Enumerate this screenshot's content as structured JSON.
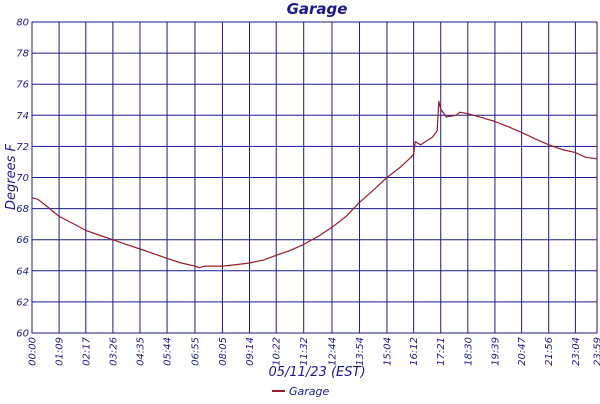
{
  "chart_data": {
    "type": "line",
    "title": "Garage",
    "xlabel": "05/11/23 (EST)",
    "ylabel": "Degrees F",
    "ylim": [
      60,
      80
    ],
    "yticks": [
      "60",
      "62",
      "64",
      "66",
      "68",
      "70",
      "72",
      "74",
      "76",
      "78",
      "80"
    ],
    "xlim": [
      "00:00",
      "23:59"
    ],
    "xticks": [
      "00:00",
      "01:09",
      "02:17",
      "03:26",
      "04:35",
      "05:44",
      "06:55",
      "08:05",
      "09:14",
      "10:22",
      "11:32",
      "12:44",
      "13:54",
      "15:04",
      "16:12",
      "17:21",
      "18:30",
      "19:39",
      "20:47",
      "21:56",
      "23:04",
      "23:59"
    ],
    "grid": true,
    "legend_position": "bottom-center",
    "colors": {
      "series": "#9b1b2a",
      "grid": "#1a1a8c",
      "text": "#1a1a8c",
      "background": "#ffffff"
    },
    "series": [
      {
        "name": "Garage",
        "x": [
          "00:00",
          "00:15",
          "00:40",
          "01:09",
          "01:40",
          "02:17",
          "02:50",
          "03:26",
          "04:00",
          "04:35",
          "05:10",
          "05:44",
          "06:20",
          "06:55",
          "07:05",
          "07:20",
          "08:05",
          "08:40",
          "09:14",
          "09:50",
          "10:22",
          "10:57",
          "11:32",
          "12:08",
          "12:44",
          "13:20",
          "13:54",
          "14:30",
          "15:04",
          "15:40",
          "16:05",
          "16:12",
          "16:16",
          "16:30",
          "17:00",
          "17:12",
          "17:16",
          "17:21",
          "17:35",
          "18:00",
          "18:10",
          "18:30",
          "19:00",
          "19:39",
          "20:10",
          "20:47",
          "21:20",
          "21:56",
          "22:30",
          "23:04",
          "23:30",
          "23:59"
        ],
        "y": [
          68.7,
          68.6,
          68.1,
          67.5,
          67.1,
          66.6,
          66.3,
          66.0,
          65.7,
          65.4,
          65.1,
          64.8,
          64.5,
          64.3,
          64.2,
          64.3,
          64.3,
          64.4,
          64.5,
          64.7,
          65.0,
          65.3,
          65.7,
          66.2,
          66.8,
          67.5,
          68.4,
          69.2,
          70.0,
          70.7,
          71.3,
          71.5,
          72.3,
          72.1,
          72.6,
          73.0,
          74.9,
          74.4,
          73.9,
          74.0,
          74.2,
          74.1,
          73.9,
          73.6,
          73.3,
          72.9,
          72.5,
          72.1,
          71.8,
          71.6,
          71.3,
          71.2
        ]
      }
    ]
  }
}
